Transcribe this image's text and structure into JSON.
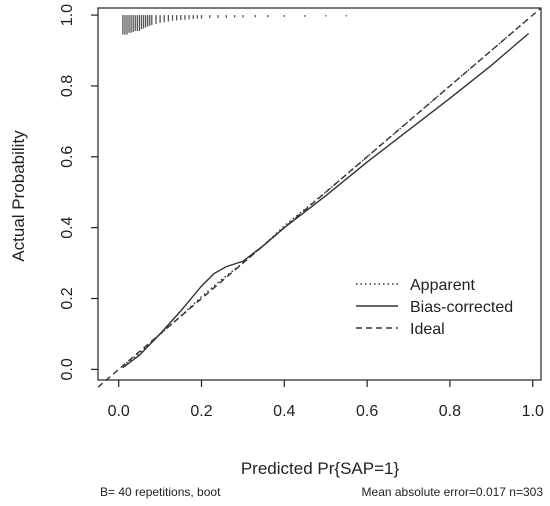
{
  "chart_data": {
    "type": "line",
    "title": "",
    "xlabel": "Predicted Pr{SAP=1}",
    "ylabel": "Actual Probability",
    "xlim": [
      -0.05,
      1.02
    ],
    "ylim": [
      -0.03,
      1.02
    ],
    "x_ticks": [
      "0.0",
      "0.2",
      "0.4",
      "0.6",
      "0.8",
      "1.0"
    ],
    "y_ticks": [
      "0.0",
      "0.2",
      "0.4",
      "0.6",
      "0.8",
      "1.0"
    ],
    "legend": {
      "placement": "bottom-right",
      "entries": [
        {
          "label": "Apparent",
          "style": "dotted"
        },
        {
          "label": "Bias-corrected",
          "style": "solid"
        },
        {
          "label": "Ideal",
          "style": "dashed"
        }
      ]
    },
    "series": [
      {
        "name": "Apparent",
        "style": "dotted",
        "x": [
          0.01,
          0.05,
          0.1,
          0.15,
          0.2,
          0.25,
          0.3,
          0.35,
          0.4,
          0.5,
          0.6,
          0.7,
          0.8,
          0.9,
          0.99
        ],
        "y": [
          0.01,
          0.045,
          0.1,
          0.15,
          0.205,
          0.255,
          0.3,
          0.35,
          0.405,
          0.5,
          0.6,
          0.7,
          0.8,
          0.9,
          0.99
        ]
      },
      {
        "name": "Bias-corrected",
        "style": "solid",
        "x": [
          0.01,
          0.05,
          0.1,
          0.15,
          0.2,
          0.23,
          0.26,
          0.3,
          0.35,
          0.4,
          0.5,
          0.6,
          0.7,
          0.8,
          0.9,
          0.99
        ],
        "y": [
          0.005,
          0.04,
          0.1,
          0.165,
          0.235,
          0.27,
          0.29,
          0.305,
          0.35,
          0.4,
          0.49,
          0.585,
          0.675,
          0.765,
          0.858,
          0.948
        ]
      },
      {
        "name": "Ideal",
        "style": "dashed",
        "x": [
          -0.05,
          1.02
        ],
        "y": [
          -0.05,
          1.02
        ]
      }
    ],
    "rug": {
      "x": [
        0.01,
        0.015,
        0.02,
        0.025,
        0.03,
        0.035,
        0.04,
        0.045,
        0.05,
        0.055,
        0.06,
        0.065,
        0.07,
        0.075,
        0.08,
        0.09,
        0.1,
        0.11,
        0.12,
        0.13,
        0.14,
        0.15,
        0.16,
        0.17,
        0.18,
        0.19,
        0.2,
        0.22,
        0.24,
        0.26,
        0.28,
        0.3,
        0.33,
        0.36,
        0.4,
        0.45,
        0.5,
        0.55
      ],
      "height": [
        0.055,
        0.055,
        0.055,
        0.05,
        0.05,
        0.048,
        0.045,
        0.045,
        0.045,
        0.04,
        0.038,
        0.035,
        0.032,
        0.03,
        0.028,
        0.025,
        0.022,
        0.02,
        0.018,
        0.016,
        0.015,
        0.014,
        0.013,
        0.012,
        0.011,
        0.01,
        0.01,
        0.009,
        0.008,
        0.008,
        0.007,
        0.007,
        0.006,
        0.006,
        0.005,
        0.005,
        0.004,
        0.004
      ]
    },
    "grid": false
  },
  "footer": {
    "left": "B= 40 repetitions, boot",
    "right": "Mean absolute error=0.017 n=303"
  },
  "colors": {
    "line": "#333333",
    "frame": "#222222"
  }
}
